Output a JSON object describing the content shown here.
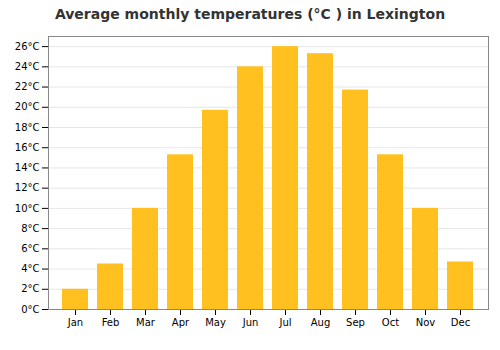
{
  "chart_data": {
    "type": "bar",
    "title": "Average monthly temperatures (°C ) in Lexington",
    "categories": [
      "Jan",
      "Feb",
      "Mar",
      "Apr",
      "May",
      "Jun",
      "Jul",
      "Aug",
      "Sep",
      "Oct",
      "Nov",
      "Dec"
    ],
    "values": [
      2,
      4.5,
      10,
      15.3,
      19.7,
      24,
      26,
      25.3,
      21.7,
      15.3,
      10,
      4.7
    ],
    "color": "#FFC020",
    "ylim": [
      0,
      27
    ],
    "yticks": [
      {
        "value": 0,
        "label": "0°C"
      },
      {
        "value": 2,
        "label": "2°C"
      },
      {
        "value": 4,
        "label": "4°C"
      },
      {
        "value": 6,
        "label": "6°C"
      },
      {
        "value": 8,
        "label": "8°C"
      },
      {
        "value": 10,
        "label": "10°C"
      },
      {
        "value": 12,
        "label": "12°C"
      },
      {
        "value": 14,
        "label": "14°C"
      },
      {
        "value": 16,
        "label": "16°C"
      },
      {
        "value": 18,
        "label": "18°C"
      },
      {
        "value": 20,
        "label": "20°C"
      },
      {
        "value": 22,
        "label": "22°C"
      },
      {
        "value": 24,
        "label": "24°C"
      },
      {
        "value": 26,
        "label": "26°C"
      }
    ],
    "grid": true
  }
}
